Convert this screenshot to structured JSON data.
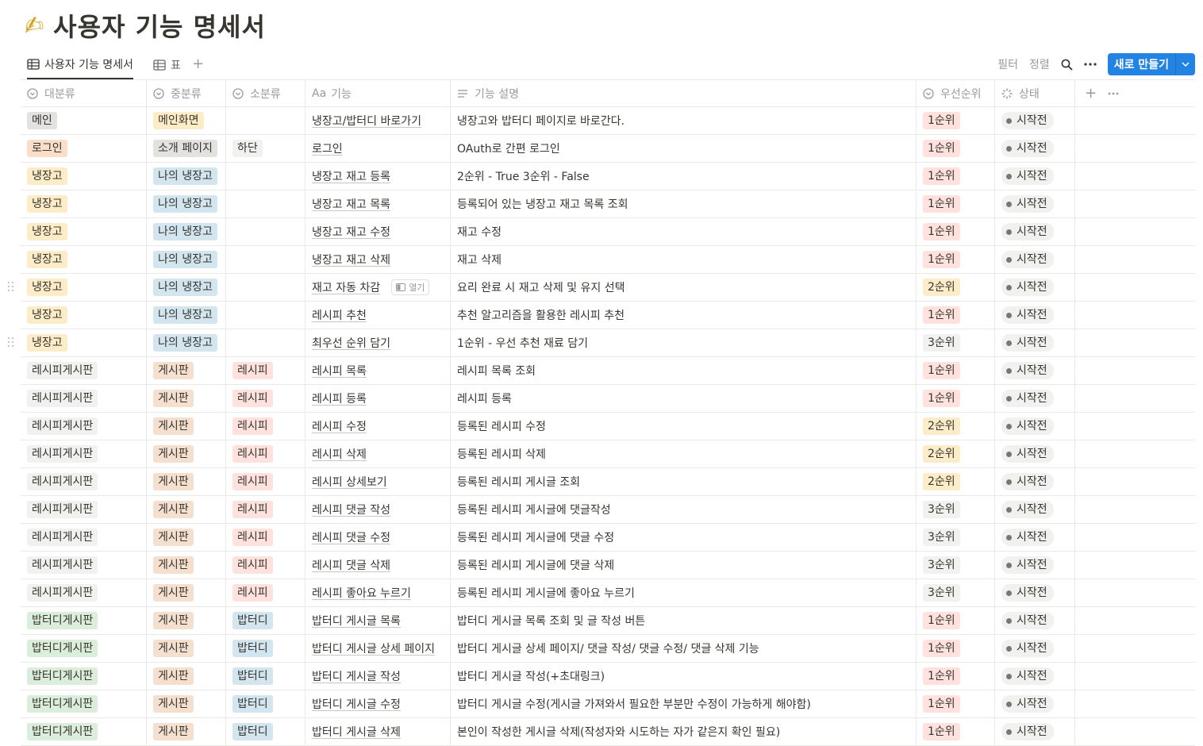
{
  "title": {
    "emoji": "✍",
    "text": "사용자 기능 명세서"
  },
  "views": {
    "tab1": "사용자 기능 명세서",
    "tab2": "표"
  },
  "toolbar": {
    "filter": "필터",
    "sort": "정렬",
    "new": "새로 만들기"
  },
  "columns": {
    "c1": "대분류",
    "c2": "중분류",
    "c3": "소분류",
    "c4": "기능",
    "c5": "기능 설명",
    "c6": "우선순위",
    "c7": "상태",
    "c4_prefix": "Aa"
  },
  "open_label": "열기",
  "colors": {
    "accent": "#2383e2",
    "gray": "#e3e2e0",
    "orange": "#fadec9",
    "yellow": "#fdecc8",
    "blue": "#d3e5ef",
    "red": "#ffe2dd",
    "green": "#dbeddb"
  },
  "rows": [
    {
      "cat": "메인",
      "sub": "메인화면",
      "subsub": "",
      "func": "냉장고/밥터디 바로가기",
      "desc": "냉장고와 밥터디 페이지로 바로간다.",
      "prio": "1순위",
      "status": "시작전"
    },
    {
      "cat": "로그인",
      "sub": "소개 페이지",
      "subsub": "하단",
      "func": "로그인",
      "desc": "OAuth로 간편 로그인",
      "prio": "1순위",
      "status": "시작전"
    },
    {
      "cat": "냉장고",
      "sub": "나의 냉장고",
      "subsub": "",
      "func": "냉장고 재고 등록",
      "desc": "2순위 - True 3순위 - False",
      "prio": "1순위",
      "status": "시작전"
    },
    {
      "cat": "냉장고",
      "sub": "나의 냉장고",
      "subsub": "",
      "func": "냉장고 재고 목록",
      "desc": "등록되어 있는 냉장고 재고 목록 조회",
      "prio": "1순위",
      "status": "시작전"
    },
    {
      "cat": "냉장고",
      "sub": "나의 냉장고",
      "subsub": "",
      "func": "냉장고 재고 수정",
      "desc": "재고 수정",
      "prio": "1순위",
      "status": "시작전"
    },
    {
      "cat": "냉장고",
      "sub": "나의 냉장고",
      "subsub": "",
      "func": "냉장고 재고 삭제",
      "desc": "재고 삭제",
      "prio": "1순위",
      "status": "시작전"
    },
    {
      "cat": "냉장고",
      "sub": "나의 냉장고",
      "subsub": "",
      "func": "재고 자동 차감",
      "desc": "요리 완료 시 재고 삭제 및 유지 선택",
      "prio": "2순위",
      "status": "시작전"
    },
    {
      "cat": "냉장고",
      "sub": "나의 냉장고",
      "subsub": "",
      "func": "레시피 추천",
      "desc": "추천 알고리즘을 활용한 레시피 추천",
      "prio": "1순위",
      "status": "시작전"
    },
    {
      "cat": "냉장고",
      "sub": "나의 냉장고",
      "subsub": "",
      "func": "최우선 순위 담기",
      "desc": "1순위 - 우선 추천 재료 담기",
      "prio": "3순위",
      "status": "시작전"
    },
    {
      "cat": "레시피게시판",
      "sub": "게시판",
      "subsub": "레시피",
      "func": "레시피 목록",
      "desc": "레시피 목록 조회",
      "prio": "1순위",
      "status": "시작전"
    },
    {
      "cat": "레시피게시판",
      "sub": "게시판",
      "subsub": "레시피",
      "func": "레시피 등록",
      "desc": "레시피 등록",
      "prio": "1순위",
      "status": "시작전"
    },
    {
      "cat": "레시피게시판",
      "sub": "게시판",
      "subsub": "레시피",
      "func": "레시피 수정",
      "desc": "등록된 레시피 수정",
      "prio": "2순위",
      "status": "시작전"
    },
    {
      "cat": "레시피게시판",
      "sub": "게시판",
      "subsub": "레시피",
      "func": "레시피 삭제",
      "desc": "등록된 레시피 삭제",
      "prio": "2순위",
      "status": "시작전"
    },
    {
      "cat": "레시피게시판",
      "sub": "게시판",
      "subsub": "레시피",
      "func": "레시피 상세보기",
      "desc": "등록된 레시피 게시글 조회",
      "prio": "2순위",
      "status": "시작전"
    },
    {
      "cat": "레시피게시판",
      "sub": "게시판",
      "subsub": "레시피",
      "func": "레시피 댓글 작성",
      "desc": "등록된 레시피 게시글에 댓글작성",
      "prio": "3순위",
      "status": "시작전"
    },
    {
      "cat": "레시피게시판",
      "sub": "게시판",
      "subsub": "레시피",
      "func": "레시피 댓글 수정",
      "desc": "등록된 레시피 게시글에 댓글 수정",
      "prio": "3순위",
      "status": "시작전"
    },
    {
      "cat": "레시피게시판",
      "sub": "게시판",
      "subsub": "레시피",
      "func": "레시피 댓글 삭제",
      "desc": "등록된 레시피 게시글에 댓글 삭제",
      "prio": "3순위",
      "status": "시작전"
    },
    {
      "cat": "레시피게시판",
      "sub": "게시판",
      "subsub": "레시피",
      "func": "레시피 좋아요 누르기",
      "desc": "등록된 레시피 게시글에 좋아요 누르기",
      "prio": "3순위",
      "status": "시작전"
    },
    {
      "cat": "밥터디게시판",
      "sub": "게시판",
      "subsub": "밥터디",
      "func": "밥터디 게시글 목록",
      "desc": "밥터디 게시글 목록 조회 및 글 작성 버튼",
      "prio": "1순위",
      "status": "시작전"
    },
    {
      "cat": "밥터디게시판",
      "sub": "게시판",
      "subsub": "밥터디",
      "func": "밥터디 게시글 상세 페이지",
      "desc": "밥터디 게시글 상세 페이지/ 댓글 작성/ 댓글 수정/ 댓글 삭제 기능",
      "prio": "1순위",
      "status": "시작전"
    },
    {
      "cat": "밥터디게시판",
      "sub": "게시판",
      "subsub": "밥터디",
      "func": "밥터디 게시글 작성",
      "desc": "밥터디 게시글 작성(+초대링크)",
      "prio": "1순위",
      "status": "시작전"
    },
    {
      "cat": "밥터디게시판",
      "sub": "게시판",
      "subsub": "밥터디",
      "func": "밥터디 게시글 수정",
      "desc": "밥터디 게시글 수정(게시글 가져와서 필요한 부분만 수정이 가능하게 해야함)",
      "prio": "1순위",
      "status": "시작전"
    },
    {
      "cat": "밥터디게시판",
      "sub": "게시판",
      "subsub": "밥터디",
      "func": "밥터디 게시글 삭제",
      "desc": "본인이 작성한 게시글 삭제(작성자와 시도하는 자가 같은지 확인 필요)",
      "prio": "1순위",
      "status": "시작전"
    }
  ]
}
